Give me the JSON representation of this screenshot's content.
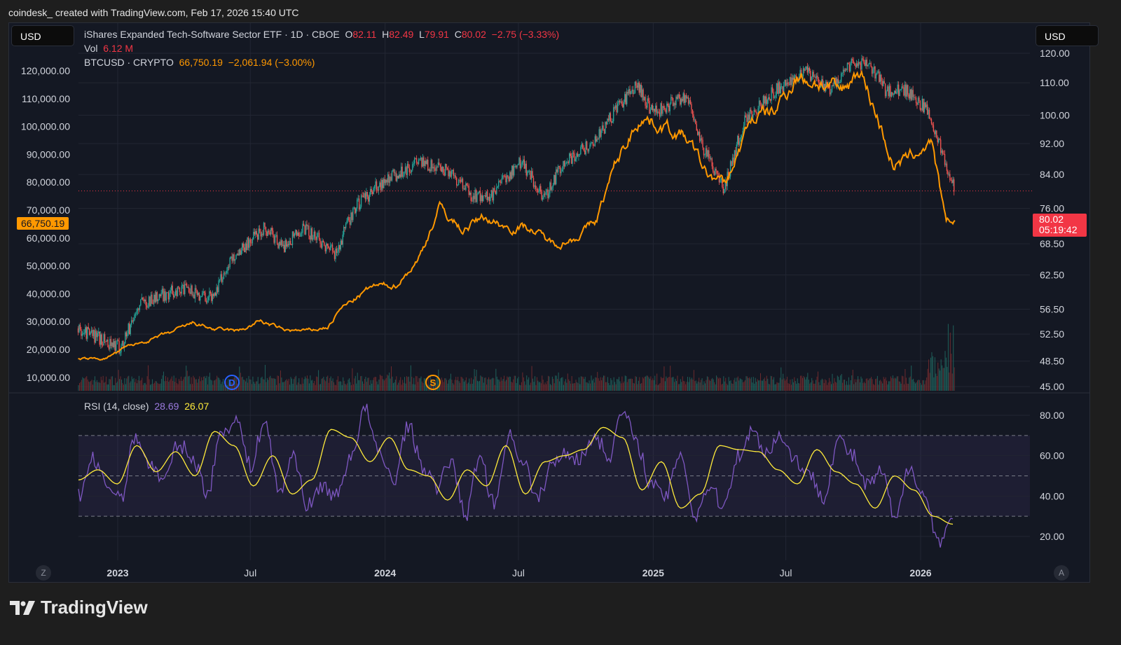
{
  "header": {
    "title": "coindesk_ created with TradingView.com, Feb 17, 2026 15:40 UTC"
  },
  "currency_left": "USD",
  "currency_right": "USD",
  "legend": {
    "igv": {
      "name": "iShares Expanded Tech-Software Sector ETF · 1D · CBOE",
      "o_label": "O",
      "o": "82.11",
      "h_label": "H",
      "h": "82.49",
      "l_label": "L",
      "l": "79.91",
      "c_label": "C",
      "c": "80.02",
      "change": "−2.75 (−3.33%)"
    },
    "vol": {
      "label": "Vol",
      "value": "6.12 M"
    },
    "btc": {
      "name": "BTCUSD · CRYPTO",
      "value": "66,750.19",
      "change": "−2,061.94 (−3.00%)"
    },
    "rsi": {
      "name": "RSI (14, close)",
      "value": "28.69",
      "ma": "26.07"
    }
  },
  "price_tags": {
    "btc": "66,750.19",
    "igv": "80.02",
    "countdown": "05:19:42"
  },
  "markers": {
    "dividend": "D",
    "split": "S"
  },
  "buttons": {
    "z": "Z",
    "a": "A"
  },
  "brand": "TradingView",
  "colors": {
    "btc": "#ff9800",
    "up": "#26a69a",
    "down": "#ef5350",
    "rsi": "#7e57c2",
    "rsi_ma": "#ffeb3b",
    "last": "#f23645"
  },
  "chart_data": [
    {
      "type": "line",
      "name": "BTCUSD",
      "axis": "left",
      "ylim": [
        0,
        130000
      ],
      "yticks": [
        "120,000.00",
        "110,000.00",
        "100,000.00",
        "90,000.00",
        "80,000.00",
        "70,000.00",
        "60,000.00",
        "50,000.00",
        "40,000.00",
        "30,000.00",
        "20,000.00",
        "10,000.00"
      ],
      "points": [
        [
          "2022-11-08",
          16500
        ],
        [
          "2022-12-15",
          16800
        ],
        [
          "2023-01-15",
          21000
        ],
        [
          "2023-02-15",
          23500
        ],
        [
          "2023-03-15",
          26000
        ],
        [
          "2023-04-15",
          29500
        ],
        [
          "2023-05-15",
          27000
        ],
        [
          "2023-06-15",
          26500
        ],
        [
          "2023-07-15",
          30200
        ],
        [
          "2023-08-15",
          27000
        ],
        [
          "2023-09-15",
          26500
        ],
        [
          "2023-10-15",
          28000
        ],
        [
          "2023-11-01",
          34500
        ],
        [
          "2023-12-15",
          42500
        ],
        [
          "2024-01-15",
          43000
        ],
        [
          "2024-02-15",
          52000
        ],
        [
          "2024-03-15",
          71000
        ],
        [
          "2024-04-15",
          63000
        ],
        [
          "2024-05-15",
          67500
        ],
        [
          "2024-06-15",
          64000
        ],
        [
          "2024-07-15",
          64000
        ],
        [
          "2024-08-15",
          58000
        ],
        [
          "2024-09-15",
          60000
        ],
        [
          "2024-10-15",
          66000
        ],
        [
          "2024-11-10",
          86000
        ],
        [
          "2024-12-15",
          104000
        ],
        [
          "2025-01-15",
          100000
        ],
        [
          "2025-02-15",
          96000
        ],
        [
          "2025-03-15",
          83000
        ],
        [
          "2025-04-10",
          79000
        ],
        [
          "2025-05-15",
          103000
        ],
        [
          "2025-06-15",
          105000
        ],
        [
          "2025-07-15",
          118000
        ],
        [
          "2025-08-15",
          116000
        ],
        [
          "2025-09-15",
          112000
        ],
        [
          "2025-10-10",
          121000
        ],
        [
          "2025-11-05",
          102000
        ],
        [
          "2025-11-25",
          86000
        ],
        [
          "2025-12-15",
          88000
        ],
        [
          "2026-01-15",
          95000
        ],
        [
          "2026-02-05",
          64000
        ],
        [
          "2026-02-17",
          66750.19
        ]
      ]
    },
    {
      "type": "candlestick",
      "name": "IGV",
      "axis": "right",
      "scale": "log",
      "ylim": [
        44,
        124
      ],
      "yticks": [
        "120.00",
        "110.00",
        "100.00",
        "92.00",
        "84.00",
        "76.00",
        "68.50",
        "62.50",
        "56.50",
        "52.50",
        "48.50",
        "45.00"
      ],
      "yvals": [
        120,
        110,
        100,
        92,
        84,
        76,
        68.5,
        62.5,
        56.5,
        52.5,
        48.5,
        45
      ],
      "points": [
        [
          "2022-11-08",
          53.4
        ],
        [
          "2023-01-05",
          50.4
        ],
        [
          "2023-02-01",
          57.5
        ],
        [
          "2023-03-27",
          60
        ],
        [
          "2023-05-10",
          58.5
        ],
        [
          "2023-06-05",
          65.4
        ],
        [
          "2023-07-20",
          72
        ],
        [
          "2023-08-15",
          67.8
        ],
        [
          "2023-09-10",
          72
        ],
        [
          "2023-10-25",
          66.5
        ],
        [
          "2023-11-20",
          75.9
        ],
        [
          "2023-12-25",
          81.7
        ],
        [
          "2024-02-01",
          85.7
        ],
        [
          "2024-02-15",
          87
        ],
        [
          "2024-03-30",
          84.8
        ],
        [
          "2024-04-28",
          78.7
        ],
        [
          "2024-05-25",
          78.7
        ],
        [
          "2024-07-05",
          87.6
        ],
        [
          "2024-08-05",
          77.7
        ],
        [
          "2024-08-30",
          86.8
        ],
        [
          "2024-10-15",
          92.9
        ],
        [
          "2024-11-12",
          102
        ],
        [
          "2024-12-10",
          109
        ],
        [
          "2025-01-01",
          100.5
        ],
        [
          "2025-02-15",
          106
        ],
        [
          "2025-03-10",
          90.8
        ],
        [
          "2025-04-08",
          80.4
        ],
        [
          "2025-05-05",
          98
        ],
        [
          "2025-06-15",
          107.3
        ],
        [
          "2025-07-25",
          114
        ],
        [
          "2025-08-30",
          108
        ],
        [
          "2025-09-28",
          116.6
        ],
        [
          "2025-10-25",
          115.4
        ],
        [
          "2025-11-15",
          107.3
        ],
        [
          "2025-12-10",
          108
        ],
        [
          "2026-01-08",
          102
        ],
        [
          "2026-01-28",
          91
        ],
        [
          "2026-02-17",
          80.02
        ]
      ]
    },
    {
      "type": "line",
      "name": "RSI (14, close)",
      "ylim": [
        10,
        85
      ],
      "bands": [
        30,
        50,
        70
      ],
      "yticks": [
        "80.00",
        "60.00",
        "40.00",
        "20.00"
      ],
      "yvals": [
        80,
        60,
        40,
        20
      ],
      "rsi": [
        40,
        58,
        45,
        40,
        70,
        55,
        48,
        66,
        58,
        42,
        72,
        78,
        55,
        77,
        42,
        60,
        35,
        45,
        40,
        60,
        83,
        60,
        48,
        75,
        55,
        44,
        58,
        30,
        60,
        36,
        70,
        58,
        38,
        55,
        62,
        58,
        70,
        60,
        82,
        65,
        45,
        40,
        62,
        30,
        45,
        35,
        60,
        72,
        62,
        70,
        58,
        50,
        40,
        68,
        60,
        45,
        52,
        28,
        55,
        40,
        18,
        28.69
      ],
      "rsi_ma": [
        48,
        53,
        46,
        65,
        52,
        62,
        50,
        72,
        65,
        45,
        60,
        41,
        48,
        73,
        69,
        57,
        69,
        53,
        50,
        38,
        53,
        45,
        65,
        41,
        57,
        60,
        63,
        74,
        69,
        43,
        57,
        34,
        41,
        65,
        63,
        62,
        53,
        46,
        63,
        52,
        46,
        34,
        50,
        43,
        30,
        26.07
      ]
    },
    {
      "type": "axis",
      "xticks": [
        [
          "2023-01-01",
          "2023"
        ],
        [
          "2023-07-01",
          "Jul"
        ],
        [
          "2024-01-01",
          "2024"
        ],
        [
          "2024-07-01",
          "Jul"
        ],
        [
          "2025-01-01",
          "2025"
        ],
        [
          "2025-07-01",
          "Jul"
        ],
        [
          "2026-01-01",
          "2026"
        ]
      ]
    }
  ]
}
